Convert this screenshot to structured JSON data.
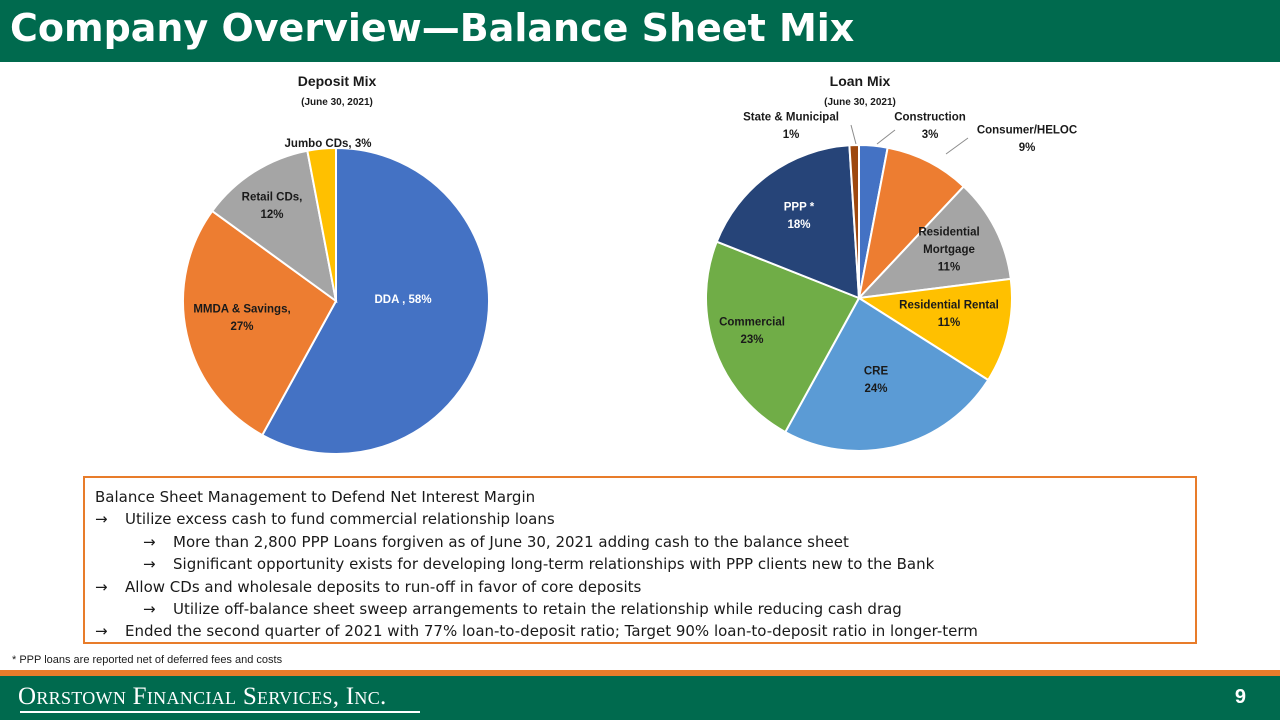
{
  "header": {
    "title": "Company Overview—Balance Sheet Mix"
  },
  "chart_data": [
    {
      "type": "pie",
      "title": "Deposit Mix",
      "subtitle": "(June 30, 2021)",
      "slices": [
        {
          "name": "DDA ,",
          "value": 58,
          "label": "58%",
          "color": "#4472c4",
          "text_color": "#ffffff"
        },
        {
          "name": "MMDA & Savings,",
          "value": 27,
          "label": "27%",
          "color": "#ed7d31",
          "text_color": "#1a1a1a"
        },
        {
          "name": "Retail CDs,",
          "value": 12,
          "label": "12%",
          "color": "#a5a5a5",
          "text_color": "#1a1a1a"
        },
        {
          "name": "Jumbo CDs,",
          "value": 3,
          "label": "3%",
          "color": "#ffc000",
          "text_color": "#1a1a1a"
        }
      ]
    },
    {
      "type": "pie",
      "title": "Loan Mix",
      "subtitle": "(June 30, 2021)",
      "slices": [
        {
          "name": "Construction",
          "value": 3,
          "label": "3%",
          "color": "#4472c4",
          "text_color": "#1a1a1a"
        },
        {
          "name": "Consumer/HELOC",
          "value": 9,
          "label": "9%",
          "color": "#ed7d31",
          "text_color": "#1a1a1a"
        },
        {
          "name": "Residential Mortgage",
          "value": 11,
          "label": "11%",
          "color": "#a5a5a5",
          "text_color": "#1a1a1a"
        },
        {
          "name": "Residential Rental",
          "value": 11,
          "label": "11%",
          "color": "#ffc000",
          "text_color": "#1a1a1a"
        },
        {
          "name": "CRE",
          "value": 24,
          "label": "24%",
          "color": "#5b9bd5",
          "text_color": "#1a1a1a"
        },
        {
          "name": "Commercial",
          "value": 23,
          "label": "23%",
          "color": "#70ad47",
          "text_color": "#1a1a1a"
        },
        {
          "name": "PPP *",
          "value": 18,
          "label": "18%",
          "color": "#264478",
          "text_color": "#ffffff"
        },
        {
          "name": "State & Municipal",
          "value": 1,
          "label": "1%",
          "color": "#9e480e",
          "text_color": "#1a1a1a"
        }
      ]
    }
  ],
  "notes": {
    "heading": "Balance Sheet Management to Defend Net Interest Margin",
    "arrow": "→",
    "items": [
      "Utilize excess cash to fund commercial relationship loans",
      "More than 2,800 PPP Loans forgiven as of June 30, 2021 adding cash to the balance sheet",
      "Significant opportunity exists for developing long-term relationships with PPP clients new to the Bank",
      "Allow CDs and wholesale deposits to run-off in favor of core deposits",
      "Utilize off-balance sheet sweep arrangements to retain the relationship while reducing cash drag",
      "Ended the second quarter of 2021 with 77% loan-to-deposit ratio; Target 90% loan-to-deposit ratio in longer-term"
    ]
  },
  "footnote": "* PPP loans are reported net of deferred fees and costs",
  "footer": {
    "company": "Orrstown Financial Services, Inc.",
    "page": "9"
  },
  "colors": {
    "brand_green": "#006a4e",
    "accent_orange": "#e87c2a"
  }
}
